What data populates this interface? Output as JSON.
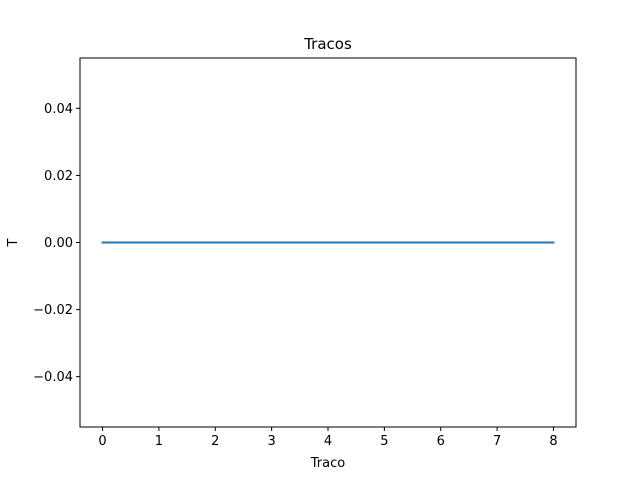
{
  "chart_data": {
    "type": "line",
    "title": "Tracos",
    "xlabel": "Traco",
    "ylabel": "T",
    "xlim": [
      -0.4,
      8.4
    ],
    "ylim": [
      -0.055,
      0.055
    ],
    "xticks": [
      0,
      1,
      2,
      3,
      4,
      5,
      6,
      7,
      8
    ],
    "xtick_labels": [
      "0",
      "1",
      "2",
      "3",
      "4",
      "5",
      "6",
      "7",
      "8"
    ],
    "yticks": [
      -0.04,
      -0.02,
      0.0,
      0.02,
      0.04
    ],
    "ytick_labels": [
      "−0.04",
      "−0.02",
      "0.00",
      "0.02",
      "0.04"
    ],
    "grid": false,
    "series": [
      {
        "color": "#1f77b4",
        "x": [
          0,
          1,
          2,
          3,
          4,
          5,
          6,
          7,
          8
        ],
        "y": [
          0,
          0,
          0,
          0,
          0,
          0,
          0,
          0,
          0
        ]
      }
    ]
  }
}
